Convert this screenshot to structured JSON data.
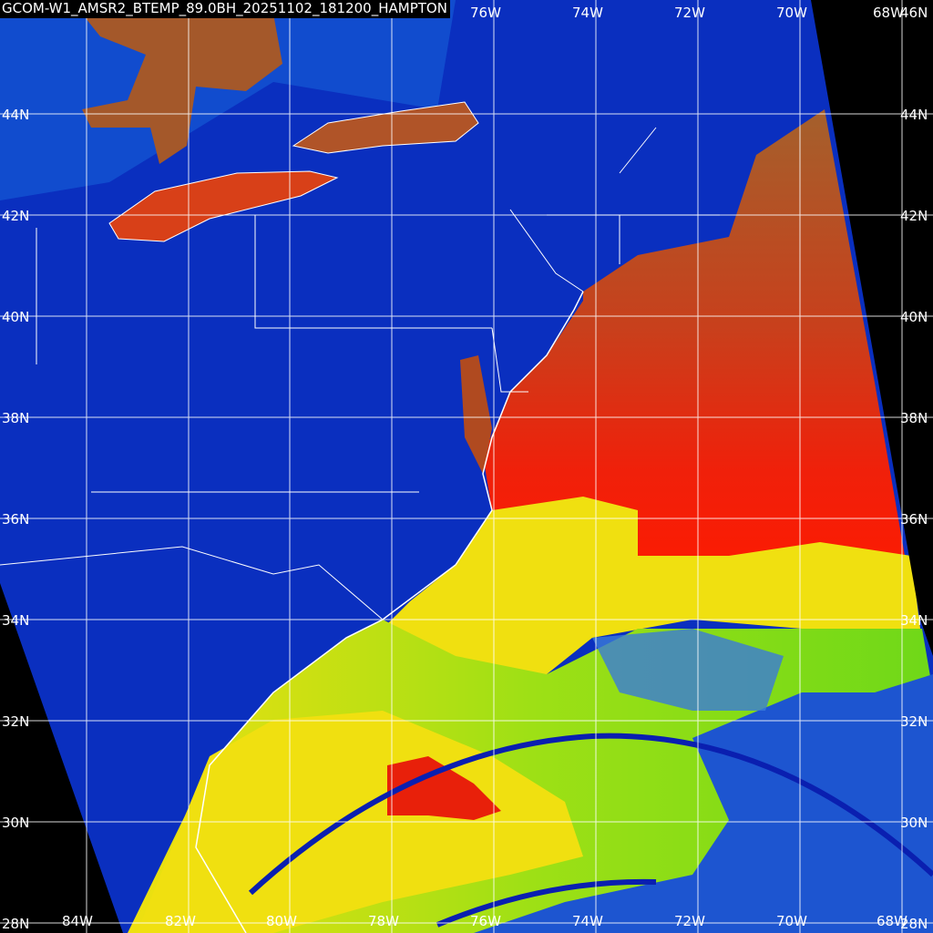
{
  "title": "GCOM-W1_AMSR2_BTEMP_89.0BH_20251102_181200_HAMPTON",
  "colors": {
    "cold_land": "#0a2fbf",
    "ocean_warm": "#e8200a",
    "ocean_brown": "#a4602c",
    "moist_yellow": "#f0e010",
    "moist_green": "#7fdc10",
    "swath_gap": "#000000",
    "grid": "#ffffff"
  },
  "latitude_labels": [
    "44N",
    "42N",
    "40N",
    "38N",
    "36N",
    "34N",
    "32N",
    "30N",
    "28N"
  ],
  "top_right_label": "46N",
  "longitude_labels_bottom": [
    "84W",
    "82W",
    "80W",
    "78W",
    "76W",
    "74W",
    "72W",
    "70W",
    "68W"
  ],
  "longitude_labels_top": [
    "76W",
    "74W",
    "72W",
    "70W",
    "68W"
  ]
}
